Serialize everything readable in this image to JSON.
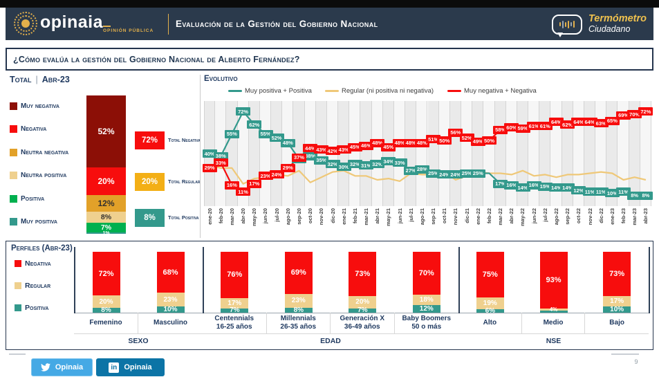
{
  "colors": {
    "navy": "#2B3A4C",
    "gold": "#E3B04B",
    "red": "#F70D0D",
    "dark_red": "#8C0F06",
    "orange": "#E2A129",
    "amber": "#F3AF16",
    "tan": "#EFD08E",
    "green": "#00B04F",
    "teal": "#33998C",
    "yellow_line": "#EFC878"
  },
  "header": {
    "brand": "opinaia",
    "brand_sub": "Opinión Pública",
    "title": "Evaluación de la Gestión del Gobierno Nacional",
    "thermo_line1": "Termómetro",
    "thermo_line2": "Ciudadano"
  },
  "question": {
    "text": "¿Cómo evalúa la gestión del Gobierno Nacional de Alberto Fernández?"
  },
  "total_panel": {
    "title": "Total",
    "separator": "|",
    "date": "Abr-23",
    "legend": [
      {
        "label": "Muy negativa",
        "color": "#8C0F06"
      },
      {
        "label": "Negativa",
        "color": "#F70D0D"
      },
      {
        "label": "Neutra negativa",
        "color": "#E2A129"
      },
      {
        "label": "Neutra positiva",
        "color": "#EFD08E"
      },
      {
        "label": "Positiva",
        "color": "#00B04F"
      },
      {
        "label": "Muy positiva",
        "color": "#33998C"
      }
    ],
    "badges": [
      {
        "value": "72%",
        "label": "Total Negativa",
        "color": "#F70D0D"
      },
      {
        "value": "20%",
        "label": "Total Regular",
        "color": "#F3AF16"
      },
      {
        "value": "8%",
        "label": "Total Positiva",
        "color": "#33998C"
      }
    ]
  },
  "evolutivo": {
    "title": "Evolutivo"
  },
  "perfiles": {
    "title": "Perfiles (Abr-23)",
    "legend": [
      {
        "label": "Negativa",
        "color": "#F70D0D"
      },
      {
        "label": "Regular",
        "color": "#EFD08E"
      },
      {
        "label": "Positiva",
        "color": "#33998C"
      }
    ]
  },
  "footer": {
    "twitter_label": "Opinaia",
    "linkedin_label": "Opinaia",
    "linkedin_icon": "in",
    "page_number": "9"
  },
  "chart_data": [
    {
      "type": "bar",
      "title": "Total | Abr-23",
      "categories": [
        "Muy negativa",
        "Negativa",
        "Neutra negativa",
        "Neutra positiva",
        "Positiva",
        "Muy positiva"
      ],
      "values": [
        52,
        20,
        12,
        8,
        7,
        1
      ],
      "value_labels": [
        "52%",
        "20%",
        "12%",
        "8%",
        "7%",
        "1%"
      ],
      "segment_colors": [
        "#8C0F06",
        "#F70D0D",
        "#E2A129",
        "#EFD08E",
        "#00B04F",
        "#33998C"
      ],
      "label_style": [
        "light",
        "light",
        "dark",
        "dark",
        "light",
        "light"
      ],
      "unit": "%",
      "totals": {
        "total_negativa": 72,
        "total_regular": 20,
        "total_positiva": 8
      }
    },
    {
      "type": "line",
      "title": "Evolutivo",
      "unit": "%",
      "ylim": [
        0,
        80
      ],
      "grid": "vertical",
      "legend_position": "top",
      "x": [
        "ene-20",
        "feb-20",
        "mar-20",
        "abr-20",
        "may-20",
        "jun-20",
        "jul-20",
        "ago-20",
        "sep-20",
        "oct-20",
        "nov-20",
        "dic-20",
        "ene-21",
        "feb-21",
        "mar-21",
        "abr-21",
        "may-21",
        "jun-21",
        "jul-21",
        "ago-21",
        "sep-21",
        "oct-21",
        "nov-21",
        "dic-21",
        "ene-22",
        "feb-22",
        "mar-22",
        "abr-22",
        "may-22",
        "jun-22",
        "jul-22",
        "ago-22",
        "sep-22",
        "oct-22",
        "nov-22",
        "dic-22",
        "ene-23",
        "feb-23",
        "mar-23",
        "abr-23"
      ],
      "series": [
        {
          "name": "Muy positiva + Positiva",
          "color": "#33998C",
          "labels_shown": true,
          "hidden_labels": [
            25
          ],
          "values": [
            40,
            38,
            55,
            72,
            62,
            55,
            52,
            48,
            36,
            38,
            35,
            32,
            30,
            32,
            31,
            32,
            34,
            33,
            27,
            28,
            25,
            24,
            24,
            25,
            25,
            25,
            17,
            16,
            14,
            16,
            15,
            14,
            14,
            12,
            11,
            11,
            10,
            11,
            8,
            8
          ]
        },
        {
          "name": "Regular (ni positiva ni negativa)",
          "color": "#EFC878",
          "labels_shown": false,
          "values": [
            31,
            29,
            29,
            17,
            21,
            22,
            24,
            23,
            27,
            18,
            22,
            26,
            27,
            23,
            23,
            20,
            21,
            19,
            25,
            24,
            24,
            26,
            20,
            23,
            26,
            25,
            25,
            24,
            27,
            23,
            24,
            22,
            24,
            24,
            25,
            26,
            25,
            20,
            22,
            20
          ]
        },
        {
          "name": "Muy negativa + Negativa",
          "color": "#F70D0D",
          "labels_shown": true,
          "values": [
            29,
            33,
            16,
            11,
            17,
            23,
            24,
            29,
            37,
            44,
            43,
            42,
            43,
            45,
            46,
            48,
            45,
            48,
            48,
            48,
            51,
            50,
            56,
            52,
            49,
            50,
            58,
            60,
            59,
            61,
            61,
            64,
            62,
            64,
            64,
            63,
            65,
            69,
            70,
            72
          ]
        }
      ]
    },
    {
      "type": "bar",
      "title": "Perfiles (Abr-23)",
      "unit": "%",
      "series_names": [
        "Negativa",
        "Regular",
        "Positiva"
      ],
      "series_colors": [
        "#F70D0D",
        "#EFD08E",
        "#33998C"
      ],
      "groups": [
        {
          "name": "SEXO",
          "cats": [
            {
              "label": "Femenino",
              "values": [
                72,
                20,
                8
              ],
              "value_labels": [
                "72%",
                "20%",
                "8%"
              ]
            },
            {
              "label": "Masculino",
              "values": [
                68,
                23,
                10
              ],
              "value_labels": [
                "68%",
                "23%",
                "10%"
              ]
            }
          ]
        },
        {
          "name": "EDAD",
          "cats": [
            {
              "label": "Centennials",
              "sublabel": "16-25 años",
              "values": [
                76,
                17,
                7
              ],
              "value_labels": [
                "76%",
                "17%",
                "7%"
              ]
            },
            {
              "label": "Millennials",
              "sublabel": "26-35 años",
              "values": [
                69,
                23,
                8
              ],
              "value_labels": [
                "69%",
                "23%",
                "8%"
              ]
            },
            {
              "label": "Generación X",
              "sublabel": "36-49 años",
              "values": [
                73,
                20,
                7
              ],
              "value_labels": [
                "73%",
                "20%",
                "7%"
              ]
            },
            {
              "label": "Baby Boomers",
              "sublabel": "50 o más",
              "values": [
                70,
                18,
                12
              ],
              "value_labels": [
                "70%",
                "18%",
                "12%"
              ]
            }
          ]
        },
        {
          "name": "NSE",
          "cats": [
            {
              "label": "Alto",
              "values": [
                75,
                19,
                6
              ],
              "value_labels": [
                "75%",
                "19%",
                "6%"
              ]
            },
            {
              "label": "Medio",
              "values": [
                93,
                4,
                3
              ],
              "value_labels": [
                "93%",
                "4%",
                ""
              ]
            },
            {
              "label": "Bajo",
              "values": [
                73,
                17,
                10
              ],
              "value_labels": [
                "73%",
                "17%",
                "10%"
              ]
            }
          ]
        }
      ]
    }
  ]
}
